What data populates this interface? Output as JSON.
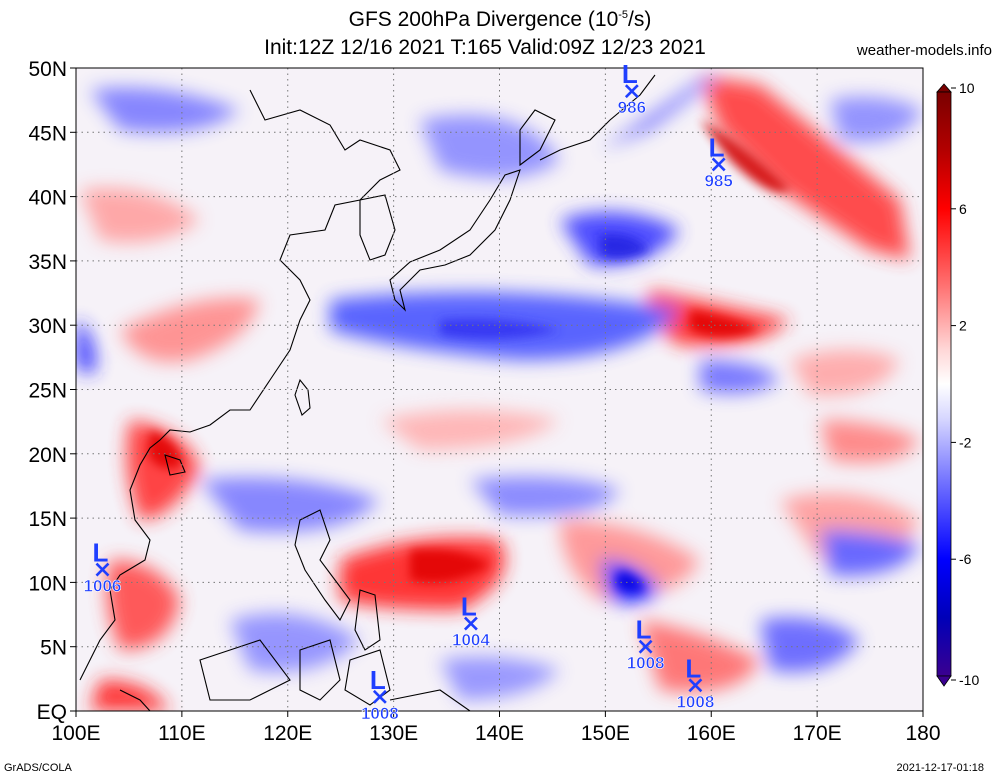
{
  "header": {
    "title_line1": "GFS 200hPa Divergence (10",
    "title_line1_exp": "-5",
    "title_line1_end": "/s)",
    "title_line2": "Init:12Z 12/16 2021 T:165 Valid:09Z 12/23 2021",
    "site": "weather-models.info"
  },
  "footer": {
    "left": "GrADS/COLA",
    "right": "2021-12-17-01:18"
  },
  "map": {
    "lon_range": [
      100,
      180
    ],
    "lat_range": [
      0,
      50
    ],
    "lon_labels": [
      "100E",
      "110E",
      "120E",
      "130E",
      "140E",
      "150E",
      "160E",
      "170E",
      "180"
    ],
    "lat_labels": [
      "EQ",
      "5N",
      "10N",
      "15N",
      "20N",
      "25N",
      "30N",
      "35N",
      "40N",
      "45N",
      "50N"
    ],
    "grid": "dotted",
    "colorbar": {
      "labels": [
        "10",
        "6",
        "2",
        "-2",
        "-6",
        "-10"
      ],
      "colors_top_to_bottom": [
        "#7a0000",
        "#c40000",
        "#ff0000",
        "#ff5a5a",
        "#ff9a9a",
        "#ffd0d0",
        "#ffffff",
        "#d0d0ff",
        "#9a9aff",
        "#5a5aff",
        "#0000ff",
        "#0000c8",
        "#3a0090"
      ]
    },
    "lows": [
      {
        "symbol": "L",
        "pressure": "986",
        "lon": 152.5,
        "lat": 48.2
      },
      {
        "symbol": "L",
        "pressure": "985",
        "lon": 160.7,
        "lat": 42.5
      },
      {
        "symbol": "L",
        "pressure": "1006",
        "lon": 102.5,
        "lat": 11.0
      },
      {
        "symbol": "L",
        "pressure": "1004",
        "lon": 137.3,
        "lat": 6.8
      },
      {
        "symbol": "L",
        "pressure": "1008",
        "lon": 153.8,
        "lat": 5.0
      },
      {
        "symbol": "L",
        "pressure": "1008",
        "lon": 128.7,
        "lat": 1.1
      },
      {
        "symbol": "L",
        "pressure": "1008",
        "lon": 158.5,
        "lat": 2.0
      }
    ]
  }
}
